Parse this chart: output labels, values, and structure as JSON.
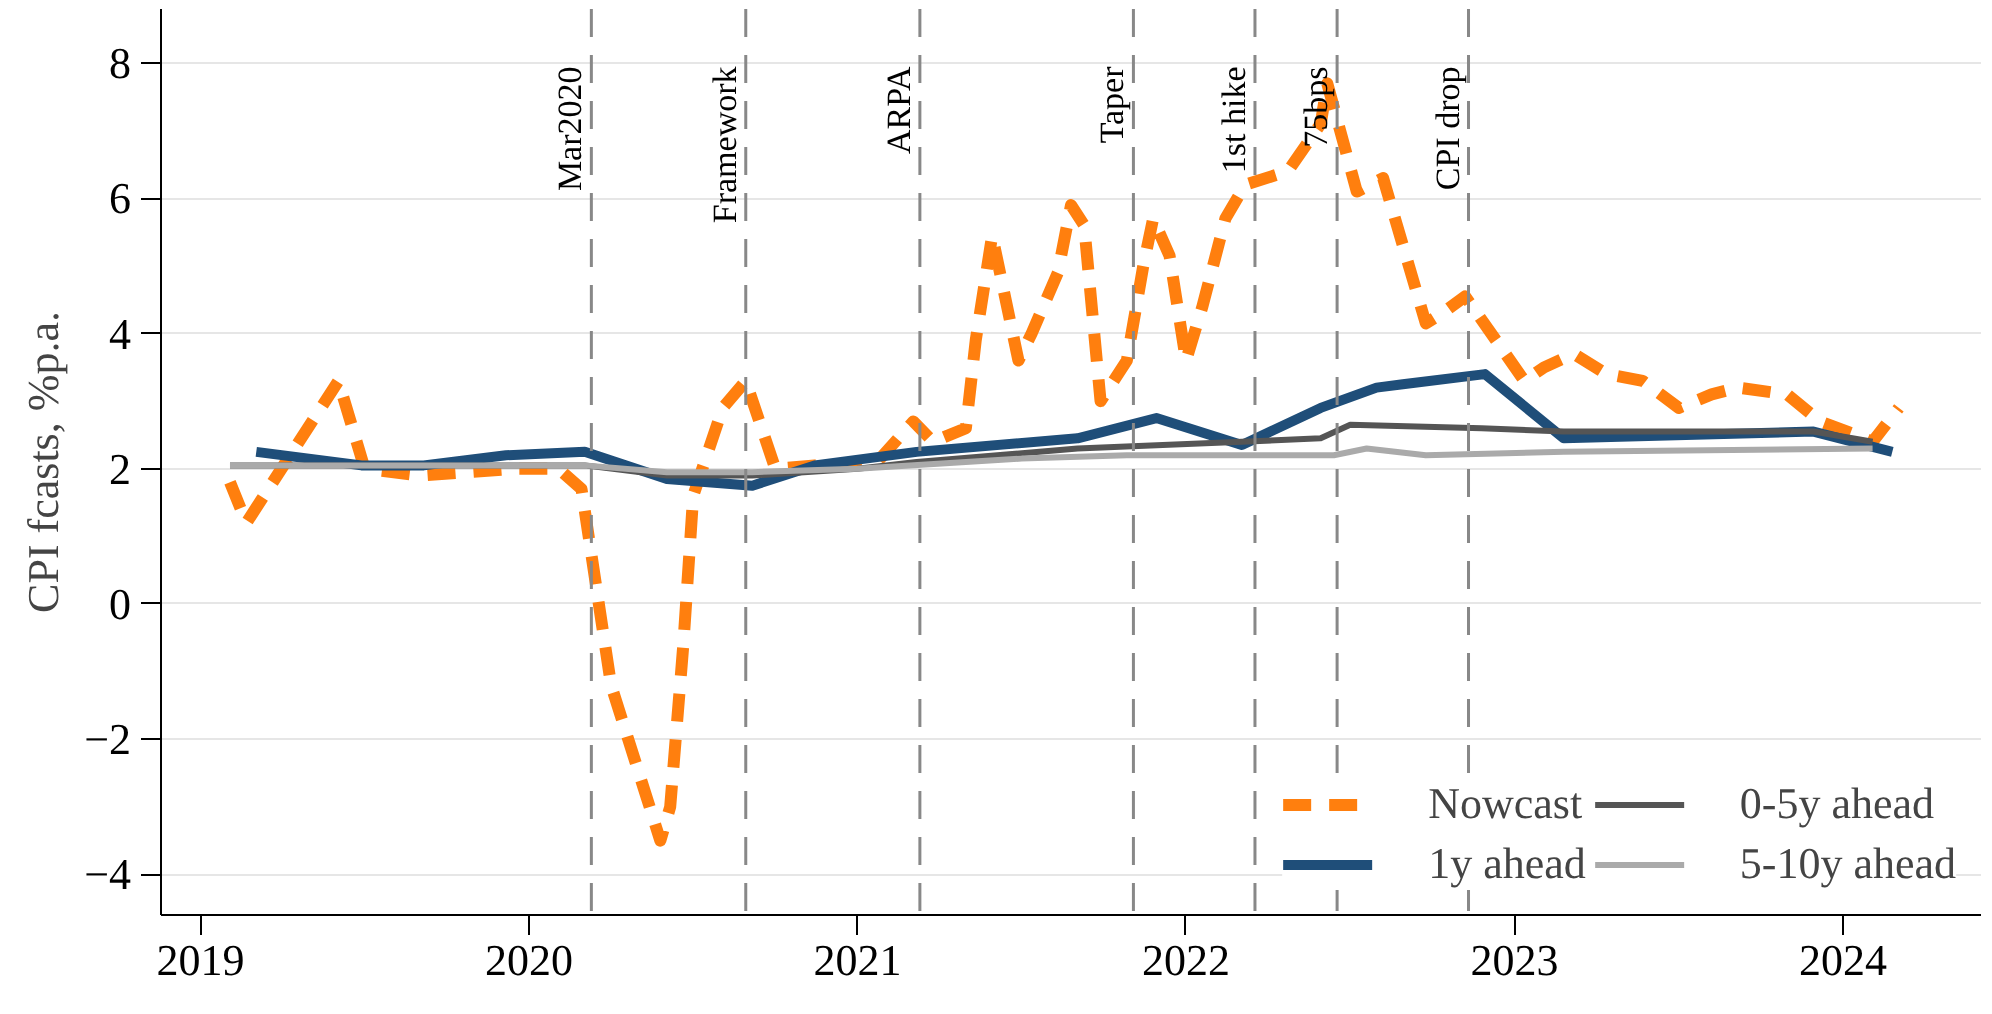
{
  "chart_data": {
    "type": "line",
    "ylabel": "CPI fcasts, %p.a.",
    "xlim": [
      2018.88,
      2024.42
    ],
    "ylim": [
      -4.6,
      8.8
    ],
    "xticks": [
      2019,
      2020,
      2021,
      2022,
      2023,
      2024
    ],
    "yticks": [
      -4,
      -2,
      0,
      2,
      4,
      6,
      8
    ],
    "grid": "y",
    "legend": "bottom right",
    "series": [
      {
        "name": "Nowcast",
        "color": "#ff7f0e",
        "line_style": "dashed",
        "x": [
          2019.09,
          2019.14,
          2019.42,
          2019.5,
          2019.67,
          2019.96,
          2020.09,
          2020.16,
          2020.25,
          2020.4,
          2020.43,
          2020.47,
          2020.5,
          2020.59,
          2020.66,
          2020.75,
          2020.87,
          2021.06,
          2021.17,
          2021.23,
          2021.33,
          2021.36,
          2021.41,
          2021.49,
          2021.53,
          2021.61,
          2021.65,
          2021.69,
          2021.74,
          2021.82,
          2021.87,
          2021.9,
          2021.95,
          2022.0,
          2022.05,
          2022.12,
          2022.18,
          2022.31,
          2022.41,
          2022.43,
          2022.52,
          2022.6,
          2022.73,
          2022.78,
          2022.85,
          2023.03,
          2023.09,
          2023.18,
          2023.28,
          2023.39,
          2023.5,
          2023.6,
          2023.68,
          2023.83,
          2023.93,
          2024.04,
          2024.09,
          2024.17
        ],
        "values": [
          1.8,
          1.2,
          3.3,
          2.0,
          1.9,
          2.0,
          2.0,
          1.7,
          -1.2,
          -3.5,
          -3.0,
          -0.6,
          1.6,
          2.9,
          3.3,
          2.0,
          2.05,
          2.1,
          2.7,
          2.4,
          2.6,
          3.9,
          5.45,
          3.6,
          4.0,
          4.9,
          5.9,
          5.6,
          3.0,
          3.6,
          5.0,
          5.7,
          5.15,
          3.6,
          4.4,
          5.7,
          6.2,
          6.4,
          7.1,
          7.7,
          6.1,
          6.3,
          4.15,
          4.3,
          4.55,
          3.3,
          3.5,
          3.7,
          3.4,
          3.3,
          2.9,
          3.1,
          3.2,
          3.1,
          2.7,
          2.5,
          2.4,
          2.9
        ]
      },
      {
        "name": "1y ahead",
        "color": "#1f4e79",
        "line_style": "solid",
        "x": [
          2019.17,
          2019.49,
          2019.68,
          2019.93,
          2020.17,
          2020.42,
          2020.68,
          2020.87,
          2021.18,
          2021.67,
          2021.91,
          2022.17,
          2022.41,
          2022.58,
          2022.66,
          2022.91,
          2023.15,
          2023.91,
          2024.15
        ],
        "values": [
          2.25,
          2.05,
          2.05,
          2.2,
          2.25,
          1.85,
          1.75,
          2.05,
          2.25,
          2.45,
          2.75,
          2.35,
          2.9,
          3.2,
          3.25,
          3.4,
          2.45,
          2.55,
          2.25
        ]
      },
      {
        "name": "0-5y ahead",
        "color": "#555555",
        "line_style": "solid",
        "x": [
          2019.09,
          2019.5,
          2020.0,
          2020.17,
          2020.42,
          2020.68,
          2021.0,
          2021.18,
          2021.67,
          2022.17,
          2022.41,
          2022.5,
          2022.9,
          2023.15,
          2023.91,
          2024.09
        ],
        "values": [
          2.05,
          2.05,
          2.05,
          2.05,
          1.9,
          1.9,
          2.0,
          2.1,
          2.3,
          2.4,
          2.45,
          2.65,
          2.6,
          2.55,
          2.55,
          2.4
        ]
      },
      {
        "name": "5-10y ahead",
        "color": "#aaaaaa",
        "line_style": "solid",
        "x": [
          2019.09,
          2019.5,
          2020.0,
          2020.17,
          2020.42,
          2020.68,
          2021.0,
          2021.5,
          2021.82,
          2022.45,
          2022.55,
          2022.73,
          2023.15,
          2024.09
        ],
        "values": [
          2.05,
          2.05,
          2.05,
          2.05,
          1.95,
          1.95,
          2.0,
          2.15,
          2.2,
          2.2,
          2.3,
          2.2,
          2.25,
          2.3
        ]
      }
    ],
    "ref_lines": [
      {
        "axis": "x",
        "value": 2020.19,
        "label": "Mar2020",
        "color": "#888888",
        "line_style": "dashed"
      },
      {
        "axis": "x",
        "value": 2020.66,
        "label": "Framework",
        "color": "#888888",
        "line_style": "dashed"
      },
      {
        "axis": "x",
        "value": 2021.19,
        "label": "ARPA",
        "color": "#888888",
        "line_style": "dashed"
      },
      {
        "axis": "x",
        "value": 2021.84,
        "label": "Taper",
        "color": "#888888",
        "line_style": "dashed"
      },
      {
        "axis": "x",
        "value": 2022.21,
        "label": "1st hike",
        "color": "#888888",
        "line_style": "dashed"
      },
      {
        "axis": "x",
        "value": 2022.46,
        "label": "75bps",
        "color": "#888888",
        "line_style": "dashed"
      },
      {
        "axis": "x",
        "value": 2022.86,
        "label": "CPI drop",
        "color": "#888888",
        "line_style": "dashed"
      }
    ]
  }
}
